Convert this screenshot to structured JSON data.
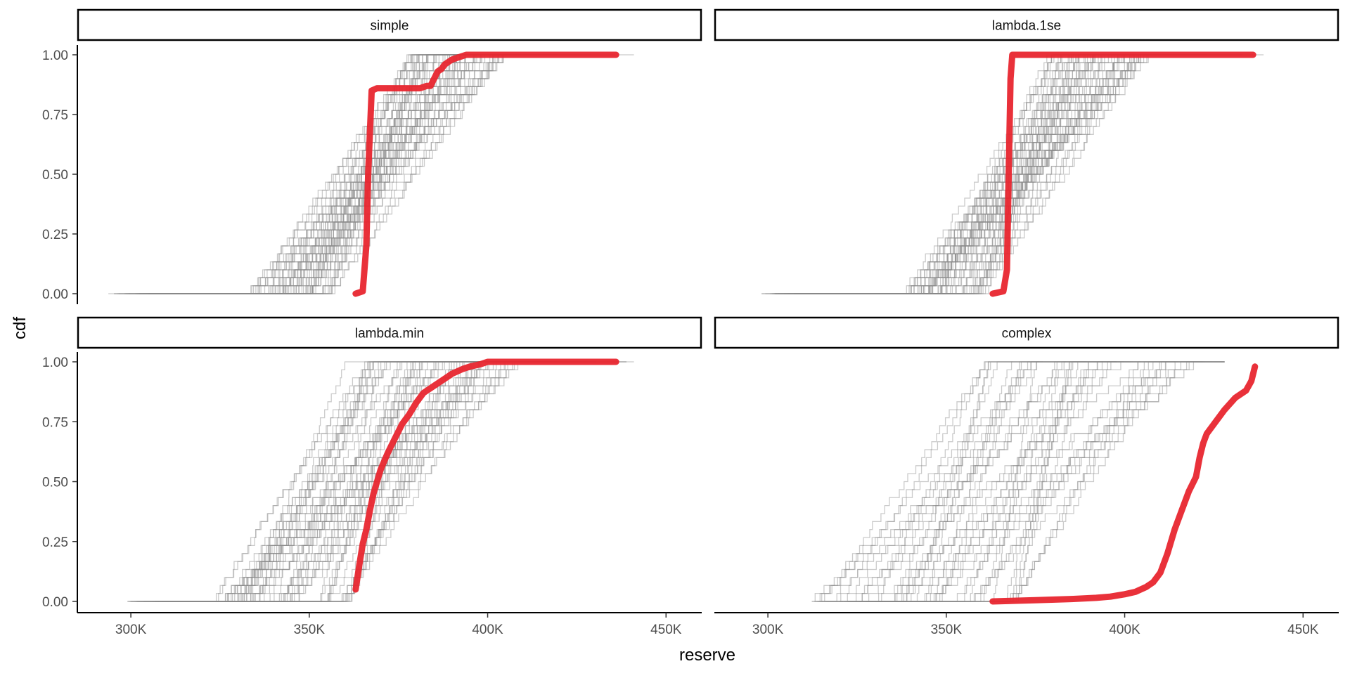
{
  "chart_data": {
    "type": "line",
    "layout": "facet-grid-2x2",
    "xlabel": "reserve",
    "ylabel": "cdf",
    "xlim": [
      285000,
      460000
    ],
    "ylim": [
      0,
      1
    ],
    "x_ticks": [
      300000,
      350000,
      400000,
      450000
    ],
    "x_tick_labels": [
      "300K",
      "350K",
      "400K",
      "450K"
    ],
    "y_ticks": [
      0,
      0.25,
      0.5,
      0.75,
      1.0
    ],
    "y_tick_labels": [
      "0.00",
      "0.25",
      "0.50",
      "0.75",
      "1.00"
    ],
    "grid": false,
    "legend": "none",
    "colors": {
      "background_curves": "#8c8c8c",
      "highlight_curve": "#e8262f",
      "strip_border": "#000000"
    },
    "panels": [
      {
        "title": "simple",
        "background_curves": {
          "count": 60,
          "x_min_range": [
            333000,
            357000
          ],
          "x_max_range": [
            378000,
            405000
          ],
          "tail_left": 293000,
          "tail_right": 452000
        },
        "highlight": {
          "name": "",
          "x": [
            363000,
            365000,
            366000,
            366500,
            367500,
            369000,
            371000,
            373000,
            375000,
            377000,
            379000,
            381000,
            383000,
            384000,
            385000,
            386000,
            387000,
            388000,
            389000,
            390000,
            392000,
            394000,
            400000,
            410000,
            436000
          ],
          "y": [
            0,
            0.01,
            0.2,
            0.5,
            0.85,
            0.86,
            0.86,
            0.86,
            0.86,
            0.86,
            0.86,
            0.86,
            0.87,
            0.87,
            0.9,
            0.93,
            0.94,
            0.96,
            0.97,
            0.98,
            0.99,
            1.0,
            1.0,
            1.0,
            1.0
          ]
        }
      },
      {
        "title": "lambda.1se",
        "background_curves": {
          "count": 60,
          "x_min_range": [
            338000,
            362000
          ],
          "x_max_range": [
            378000,
            408000
          ],
          "tail_left": 298000,
          "tail_right": 456000
        },
        "highlight": {
          "name": "",
          "x": [
            363000,
            366000,
            367000,
            367500,
            368000,
            368500,
            370000,
            380000,
            400000,
            420000,
            436000
          ],
          "y": [
            0,
            0.01,
            0.1,
            0.5,
            0.9,
            1.0,
            1.0,
            1.0,
            1.0,
            1.0,
            1.0
          ]
        }
      },
      {
        "title": "lambda.min",
        "background_curves": {
          "count": 60,
          "x_min_range": [
            322000,
            362000
          ],
          "x_max_range": [
            360000,
            410000
          ],
          "tail_left": 299000,
          "tail_right": 441000
        },
        "highlight": {
          "name": "",
          "x": [
            363000,
            364000,
            365000,
            366000,
            367000,
            368000,
            370000,
            372000,
            374000,
            376000,
            378000,
            380000,
            382000,
            385000,
            388000,
            390000,
            393000,
            395000,
            398000,
            400000,
            405000,
            420000,
            436000
          ],
          "y": [
            0.05,
            0.15,
            0.24,
            0.3,
            0.38,
            0.45,
            0.55,
            0.62,
            0.68,
            0.74,
            0.78,
            0.83,
            0.87,
            0.9,
            0.93,
            0.95,
            0.97,
            0.98,
            0.99,
            1.0,
            1.0,
            1.0,
            1.0
          ]
        }
      },
      {
        "title": "complex",
        "background_curves": {
          "count": 45,
          "x_min_range": [
            312000,
            370000
          ],
          "x_max_range": [
            360000,
            425000
          ],
          "tail_left": 312000,
          "tail_right": 428000
        },
        "highlight": {
          "name": "",
          "x": [
            363000,
            375000,
            385000,
            392000,
            396000,
            400000,
            403000,
            406000,
            408000,
            410000,
            412000,
            414000,
            416000,
            418000,
            420000,
            421000,
            422000,
            423000,
            425000,
            428000,
            431000,
            434000,
            435500,
            436500
          ],
          "y": [
            0,
            0.005,
            0.01,
            0.015,
            0.02,
            0.03,
            0.04,
            0.06,
            0.08,
            0.12,
            0.2,
            0.3,
            0.38,
            0.46,
            0.52,
            0.6,
            0.66,
            0.7,
            0.74,
            0.8,
            0.85,
            0.88,
            0.92,
            0.98
          ]
        }
      }
    ]
  }
}
